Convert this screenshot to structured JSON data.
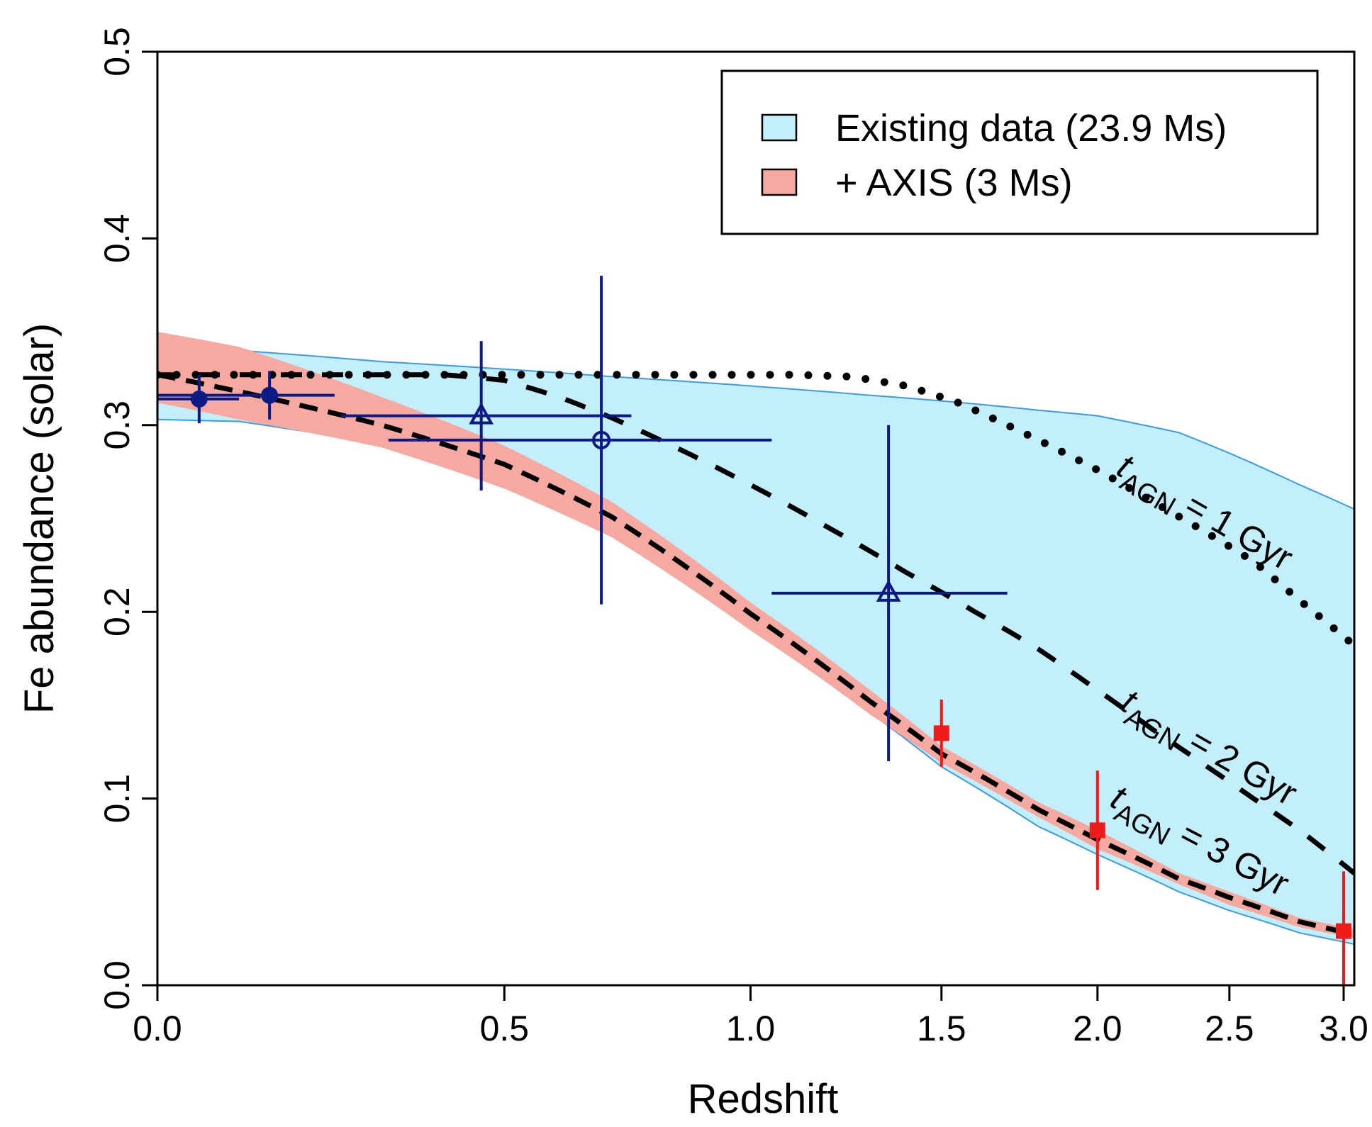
{
  "chart_data": {
    "type": "line",
    "title": "",
    "xlabel": "Redshift",
    "ylabel": "Fe abundance (solar)",
    "xlim": [
      0.0,
      3.05
    ],
    "ylim": [
      0.0,
      0.5
    ],
    "x_axis_scale": "log(1+z)",
    "x_ticks": [
      0.0,
      0.5,
      1.0,
      1.5,
      2.0,
      2.5,
      3.0
    ],
    "x_tick_labels": [
      "0.0",
      "0.5",
      "1.0",
      "1.5",
      "2.0",
      "2.5",
      "3.0"
    ],
    "y_ticks": [
      0.0,
      0.1,
      0.2,
      0.3,
      0.4,
      0.5
    ],
    "y_tick_labels": [
      "0.0",
      "0.1",
      "0.2",
      "0.3",
      "0.4",
      "0.5"
    ],
    "colors": {
      "existing_fill": "#c3eefb",
      "existing_edge": "#3b9be6",
      "axis_fill": "#f6a9a0",
      "navy": "#0c1a85",
      "red": "#ee1b1b"
    },
    "legend": {
      "position": "top-right",
      "entries": [
        {
          "label": "Existing data (23.9 Ms)",
          "color": "#c3eefb"
        },
        {
          "label": "+ AXIS (3 Ms)",
          "color": "#f6a9a0"
        }
      ]
    },
    "bands": [
      {
        "name": "Existing data (23.9 Ms)",
        "x": [
          0.0,
          0.1,
          0.3,
          0.5,
          0.7,
          1.0,
          1.3,
          1.5,
          1.8,
          2.0,
          2.3,
          2.5,
          2.8,
          3.05
        ],
        "upper": [
          0.345,
          0.34,
          0.334,
          0.33,
          0.326,
          0.321,
          0.316,
          0.313,
          0.308,
          0.305,
          0.296,
          0.285,
          0.268,
          0.255
        ],
        "lower": [
          0.303,
          0.302,
          0.29,
          0.268,
          0.242,
          0.193,
          0.146,
          0.117,
          0.085,
          0.07,
          0.05,
          0.04,
          0.028,
          0.022
        ]
      },
      {
        "name": "+ AXIS (3 Ms)",
        "x": [
          0.0,
          0.1,
          0.3,
          0.5,
          0.7,
          1.0,
          1.3,
          1.5,
          1.8,
          2.0,
          2.3,
          2.5,
          2.8,
          3.05
        ],
        "upper": [
          0.35,
          0.342,
          0.315,
          0.289,
          0.259,
          0.205,
          0.158,
          0.128,
          0.098,
          0.083,
          0.06,
          0.05,
          0.036,
          0.03
        ],
        "lower": [
          0.312,
          0.303,
          0.288,
          0.266,
          0.24,
          0.19,
          0.145,
          0.119,
          0.09,
          0.073,
          0.054,
          0.043,
          0.031,
          0.025
        ]
      }
    ],
    "series": [
      {
        "name": "t_AGN = 1 Gyr",
        "style": "dotted",
        "x": [
          0.0,
          0.3,
          0.5,
          0.7,
          0.9,
          1.1,
          1.25,
          1.4,
          1.55,
          1.7,
          1.85,
          2.0,
          2.2,
          2.4,
          2.6,
          2.8,
          3.05
        ],
        "y": [
          0.327,
          0.327,
          0.327,
          0.327,
          0.327,
          0.327,
          0.326,
          0.321,
          0.312,
          0.3,
          0.288,
          0.276,
          0.259,
          0.243,
          0.227,
          0.206,
          0.182
        ]
      },
      {
        "name": "t_AGN = 2 Gyr",
        "style": "dashdot",
        "x": [
          0.0,
          0.2,
          0.4,
          0.5,
          0.6,
          0.7,
          0.8,
          1.0,
          1.2,
          1.4,
          1.6,
          1.8,
          2.0,
          2.2,
          2.4,
          2.6,
          2.8,
          3.05
        ],
        "y": [
          0.327,
          0.327,
          0.327,
          0.324,
          0.315,
          0.304,
          0.292,
          0.268,
          0.244,
          0.221,
          0.2,
          0.18,
          0.158,
          0.137,
          0.118,
          0.1,
          0.083,
          0.06
        ]
      },
      {
        "name": "t_AGN = 3 Gyr",
        "style": "dashed",
        "x": [
          0.0,
          0.1,
          0.3,
          0.5,
          0.7,
          1.0,
          1.3,
          1.5,
          1.8,
          2.0,
          2.3,
          2.5,
          2.8,
          3.05
        ],
        "y": [
          0.327,
          0.318,
          0.3,
          0.279,
          0.251,
          0.199,
          0.152,
          0.124,
          0.094,
          0.078,
          0.057,
          0.047,
          0.034,
          0.027
        ]
      }
    ],
    "curve_labels": [
      {
        "series": "t_AGN = 1 Gyr",
        "t": "t",
        "sub": "AGN",
        "rest": " = 1 Gyr"
      },
      {
        "series": "t_AGN = 2 Gyr",
        "t": "t",
        "sub": "AGN",
        "rest": " = 2 Gyr"
      },
      {
        "series": "t_AGN = 3 Gyr",
        "t": "t",
        "sub": "AGN",
        "rest": " = 3 Gyr"
      }
    ],
    "points": [
      {
        "group": "existing",
        "marker": "filled-circle",
        "x": 0.05,
        "y": 0.314,
        "xerr": [
          0.05,
          0.05
        ],
        "yerr": [
          0.013,
          0.013
        ]
      },
      {
        "group": "existing",
        "marker": "filled-circle",
        "x": 0.14,
        "y": 0.316,
        "xerr": [
          0.14,
          0.09
        ],
        "yerr": [
          0.013,
          0.013
        ]
      },
      {
        "group": "existing",
        "marker": "open-triangle",
        "x": 0.46,
        "y": 0.305,
        "xerr": [
          0.22,
          0.28
        ],
        "yerr": [
          0.04,
          0.04
        ]
      },
      {
        "group": "existing",
        "marker": "open-circle",
        "x": 0.68,
        "y": 0.292,
        "xerr": [
          0.37,
          0.37
        ],
        "yerr": [
          0.088,
          0.088
        ]
      },
      {
        "group": "existing",
        "marker": "open-triangle",
        "x": 1.35,
        "y": 0.21,
        "xerr": [
          0.3,
          0.35
        ],
        "yerr": [
          0.09,
          0.09
        ]
      },
      {
        "group": "axis",
        "marker": "filled-square",
        "x": 1.5,
        "y": 0.135,
        "xerr": [
          0,
          0
        ],
        "yerr": [
          0.018,
          0.018
        ]
      },
      {
        "group": "axis",
        "marker": "filled-square",
        "x": 2.0,
        "y": 0.083,
        "xerr": [
          0,
          0
        ],
        "yerr": [
          0.032,
          0.032
        ]
      },
      {
        "group": "axis",
        "marker": "filled-square",
        "x": 3.0,
        "y": 0.029,
        "xerr": [
          0,
          0
        ],
        "yerr": [
          0.032,
          0.032
        ]
      }
    ]
  }
}
